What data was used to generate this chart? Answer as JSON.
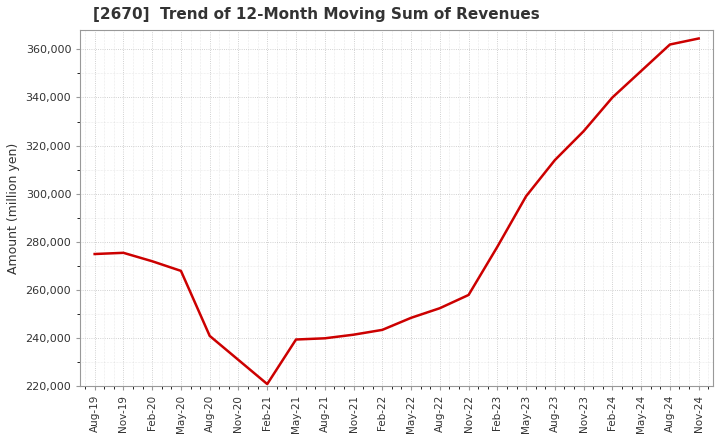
{
  "title": "[2670]  Trend of 12-Month Moving Sum of Revenues",
  "ylabel": "Amount (million yen)",
  "line_color": "#CC0000",
  "line_width": 1.8,
  "background_color": "#FFFFFF",
  "grid_color": "#999999",
  "ylim": [
    220000,
    368000
  ],
  "yticks": [
    220000,
    240000,
    260000,
    280000,
    300000,
    320000,
    340000,
    360000
  ],
  "x_labels": [
    "Aug-19",
    "Nov-19",
    "Feb-20",
    "May-20",
    "Aug-20",
    "Nov-20",
    "Feb-21",
    "May-21",
    "Aug-21",
    "Nov-21",
    "Feb-22",
    "May-22",
    "Aug-22",
    "Nov-22",
    "Feb-23",
    "May-23",
    "Aug-23",
    "Nov-23",
    "Feb-24",
    "May-24",
    "Aug-24",
    "Nov-24"
  ],
  "y_values": [
    275000,
    275500,
    272000,
    268000,
    241000,
    231000,
    221000,
    239500,
    240000,
    241500,
    243500,
    248500,
    252500,
    258000,
    278000,
    299000,
    314000,
    326000,
    340000,
    351000,
    362000,
    364500
  ]
}
